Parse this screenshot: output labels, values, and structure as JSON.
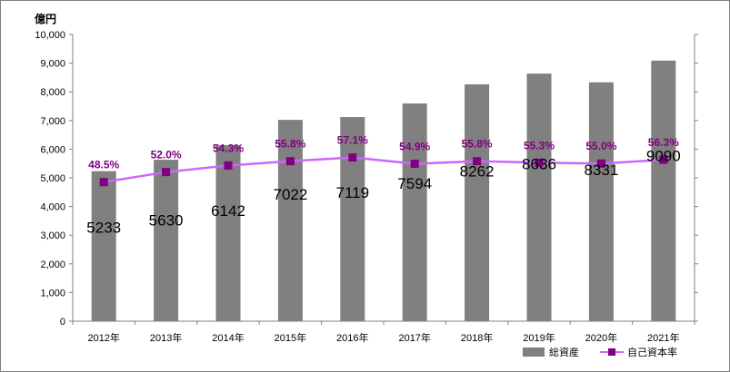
{
  "chart_data": {
    "type": "bar",
    "unit_label": "億円",
    "categories": [
      "2012年",
      "2013年",
      "2014年",
      "2015年",
      "2016年",
      "2017年",
      "2018年",
      "2019年",
      "2020年",
      "2021年"
    ],
    "series": [
      {
        "name": "総資産",
        "type": "bar",
        "values": [
          5233,
          5630,
          6142,
          7022,
          7119,
          7594,
          8262,
          8636,
          8331,
          9090
        ],
        "labels": [
          "5233",
          "5630",
          "6142",
          "7022",
          "7119",
          "7594",
          "8262",
          "8636",
          "8331",
          "9090"
        ],
        "color": "#808080"
      },
      {
        "name": "自己資本率",
        "type": "line",
        "values": [
          48.5,
          52.0,
          54.3,
          55.8,
          57.1,
          54.9,
          55.8,
          55.3,
          55.0,
          56.3
        ],
        "labels": [
          "48.5%",
          "52.0%",
          "54.3%",
          "55.8%",
          "57.1%",
          "54.9%",
          "55.8%",
          "55.3%",
          "55.0%",
          "56.3%"
        ],
        "color": "#cc66ff",
        "marker_color": "#800080"
      }
    ],
    "y_ticks": [
      "0",
      "1,000",
      "2,000",
      "3,000",
      "4,000",
      "5,000",
      "6,000",
      "7,000",
      "8,000",
      "9,000",
      "10,000"
    ],
    "ylim": [
      0,
      10000
    ],
    "line_plot_scale": [
      0,
      100
    ],
    "grid": false,
    "legend_position": "bottom-right"
  }
}
